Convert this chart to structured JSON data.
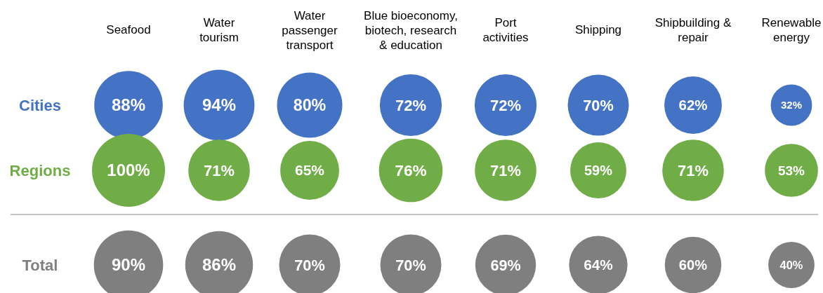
{
  "chart_data": {
    "type": "other",
    "categories": [
      "Seafood",
      "Water\ntourism",
      "Water\npassenger\ntransport",
      "Blue bioeconomy,\nbiotech, research\n& education",
      "Port\nactivities",
      "Shipping",
      "Shipbuilding &\nrepair",
      "Renewable\nenergy"
    ],
    "series": [
      {
        "name": "Cities",
        "color": "#4472c4",
        "values": [
          88,
          94,
          80,
          72,
          72,
          70,
          62,
          32
        ],
        "value_labels": [
          "88%",
          "94%",
          "80%",
          "72%",
          "72%",
          "70%",
          "62%",
          "32%"
        ]
      },
      {
        "name": "Regions",
        "color": "#70ad47",
        "values": [
          100,
          71,
          65,
          76,
          71,
          59,
          71,
          53
        ],
        "value_labels": [
          "100%",
          "71%",
          "65%",
          "76%",
          "71%",
          "59%",
          "71%",
          "53%"
        ]
      },
      {
        "name": "Total",
        "color": "#7f7f7f",
        "values": [
          90,
          86,
          70,
          70,
          69,
          64,
          60,
          40
        ],
        "value_labels": [
          "90%",
          "86%",
          "70%",
          "70%",
          "69%",
          "64%",
          "60%",
          "40%"
        ]
      }
    ]
  }
}
